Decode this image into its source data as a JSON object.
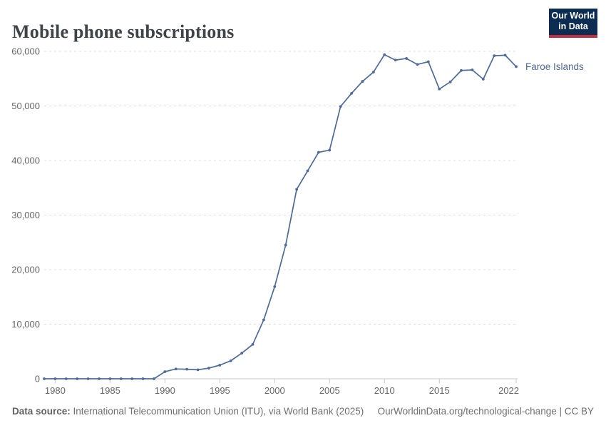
{
  "header": {
    "title": "Mobile phone subscriptions",
    "logo": {
      "line1": "Our World",
      "line2": "in Data",
      "bg_color": "#0d2c52",
      "accent_color": "#bf3041"
    }
  },
  "chart_data": {
    "type": "line",
    "title": "Mobile phone subscriptions",
    "xlabel": "",
    "ylabel": "",
    "xlim": [
      1979,
      2022
    ],
    "ylim": [
      0,
      60000
    ],
    "grid": "horizontal-dashed",
    "legend_position": "end-of-line-label",
    "x_ticks": [
      1980,
      1985,
      1990,
      1995,
      2000,
      2005,
      2010,
      2015,
      2022
    ],
    "y_ticks": [
      0,
      10000,
      20000,
      30000,
      40000,
      50000,
      60000
    ],
    "y_tick_labels": [
      "0",
      "10,000",
      "20,000",
      "30,000",
      "40,000",
      "50,000",
      "60,000"
    ],
    "colors": {
      "line": "#4c6a9c",
      "grid": "#e0e0e0",
      "axis": "#c8c8c8",
      "tick_label": "#666666"
    },
    "series": [
      {
        "name": "Faroe Islands",
        "color": "#4c6a9c",
        "x": [
          1979,
          1980,
          1981,
          1982,
          1983,
          1984,
          1985,
          1986,
          1987,
          1988,
          1989,
          1990,
          1991,
          1992,
          1993,
          1994,
          1995,
          1996,
          1997,
          1998,
          1999,
          2000,
          2001,
          2002,
          2003,
          2004,
          2005,
          2006,
          2007,
          2008,
          2009,
          2010,
          2011,
          2012,
          2013,
          2014,
          2015,
          2016,
          2017,
          2018,
          2019,
          2020,
          2021,
          2022
        ],
        "values": [
          0,
          0,
          0,
          0,
          0,
          0,
          0,
          0,
          0,
          0,
          0,
          1300,
          1800,
          1750,
          1650,
          1950,
          2500,
          3300,
          4700,
          6300,
          10800,
          16900,
          24500,
          34700,
          38100,
          41500,
          41900,
          49900,
          52300,
          54500,
          56200,
          59400,
          58400,
          58700,
          57600,
          58100,
          53100,
          54400,
          56500,
          56600,
          54900,
          59200,
          59300,
          57200
        ]
      }
    ]
  },
  "footer": {
    "source_label": "Data source:",
    "source_text": " International Telecommunication Union (ITU), via World Bank (2025)",
    "attribution": "OurWorldinData.org/technological-change | CC BY"
  }
}
